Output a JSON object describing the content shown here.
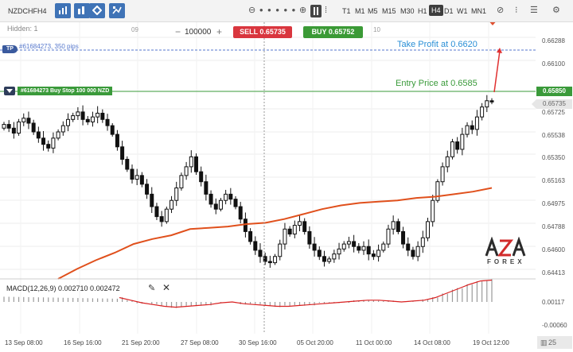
{
  "toolbar": {
    "symbol": "NZDCHF",
    "period": "H4",
    "timeframes": [
      "T1",
      "M1",
      "M5",
      "M15",
      "M30",
      "H1",
      "H4",
      "D1",
      "W1",
      "MN1"
    ],
    "active_timeframe": "H4",
    "icons": [
      "bar-chart-icon",
      "bar-chart-icon",
      "diamond-icon",
      "indicators-icon",
      "zoom-out-icon",
      "dots-icon",
      "zoom-in-icon",
      "candlestick-type-icon",
      "drawing-tools-icon",
      "crosshair-icon",
      "settings-icon"
    ]
  },
  "chart_header": {
    "hidden_label": "Hidden: 1",
    "date_marks": [
      "09",
      "10"
    ],
    "quantity_minus": "−",
    "quantity": "100000",
    "quantity_plus": "+",
    "sell_label": "SELL 0.65735",
    "buy_label": "BUY 0.65752"
  },
  "overlays": {
    "tp_tag": "TP",
    "tp_order_label": "#61684273, 350 pips",
    "take_profit_text": "Take Profit at 0.6620",
    "entry_text": "Entry Price at 0.6585",
    "order_label": "#61684273 Buy Stop 100 000 NZD"
  },
  "price_axis": {
    "ticks": [
      "0.66288",
      "0.66100",
      "0.65725",
      "0.65538",
      "0.65350",
      "0.65163",
      "0.64975",
      "0.64788",
      "0.64600",
      "0.64413"
    ],
    "entry_badge": "0.65850",
    "current_badge": "0.65735"
  },
  "macd": {
    "label": "MACD(12,26,9) 0.002710 0.002472",
    "ticks": [
      "0.00117",
      "-0.00060"
    ]
  },
  "time_axis": {
    "ticks": [
      "13 Sep 08:00",
      "16 Sep 16:00",
      "21 Sep 20:00",
      "27 Sep 08:00",
      "30 Sep 16:00",
      "05 Oct 20:00",
      "11 Oct 00:00",
      "14 Oct 08:00",
      "19 Oct 12:00"
    ],
    "zoom": "25"
  },
  "logo": {
    "text": "FOREX",
    "mark": "AZA"
  },
  "colors": {
    "sell": "#d9363e",
    "buy": "#3b9a36",
    "take_profit": "#2a8fd6",
    "entry": "#3a9a3a",
    "ma": "#e0501c",
    "macd_signal": "#d92020",
    "candle": "#111111"
  },
  "chart_data": {
    "type": "candlestick",
    "symbol": "NZDCHF",
    "timeframe": "H4",
    "ylim": [
      0.6432,
      0.6638
    ],
    "take_profit": 0.662,
    "entry_price": 0.6585,
    "current_price": 0.65735,
    "closes_approx": [
      0.6556,
      0.6553,
      0.6549,
      0.6558,
      0.6561,
      0.6557,
      0.655,
      0.6545,
      0.654,
      0.6537,
      0.6545,
      0.655,
      0.6555,
      0.656,
      0.6563,
      0.6566,
      0.656,
      0.6558,
      0.6562,
      0.6565,
      0.656,
      0.6555,
      0.6548,
      0.6538,
      0.6528,
      0.652,
      0.6512,
      0.6515,
      0.6508,
      0.65,
      0.649,
      0.6482,
      0.6478,
      0.6488,
      0.6495,
      0.6505,
      0.6515,
      0.6522,
      0.653,
      0.6518,
      0.651,
      0.65,
      0.6492,
      0.6488,
      0.6495,
      0.65,
      0.6496,
      0.649,
      0.648,
      0.647,
      0.6462,
      0.6455,
      0.645,
      0.6446,
      0.6445,
      0.645,
      0.646,
      0.6472,
      0.6468,
      0.6475,
      0.6478,
      0.647,
      0.646,
      0.6455,
      0.645,
      0.6446,
      0.6448,
      0.6452,
      0.6456,
      0.646,
      0.6462,
      0.6458,
      0.6455,
      0.6458,
      0.6452,
      0.645,
      0.6455,
      0.646,
      0.6472,
      0.6478,
      0.647,
      0.646,
      0.6455,
      0.645,
      0.6458,
      0.6465,
      0.6478,
      0.6495,
      0.651,
      0.6522,
      0.653,
      0.6542,
      0.6536,
      0.6548,
      0.6555,
      0.6552,
      0.6562,
      0.657,
      0.6575,
      0.6574
    ],
    "ma_approx": [
      0.6432,
      0.644,
      0.6447,
      0.6453,
      0.646,
      0.6464,
      0.6467,
      0.6472,
      0.6473,
      0.6474,
      0.6476,
      0.6477,
      0.648,
      0.6484,
      0.6488,
      0.6491,
      0.6493,
      0.6494,
      0.6495,
      0.6497,
      0.6498,
      0.65,
      0.6502,
      0.6505
    ],
    "macd_signal_approx": [
      0.0005,
      0.0002,
      -0.0001,
      -0.0003,
      -0.0005,
      -0.0006,
      -0.0005,
      -0.0004,
      -0.0003,
      -0.0001,
      0.0,
      -0.0002,
      -0.0003,
      -0.0004,
      -0.0005,
      -0.0005,
      -0.0004,
      -0.0003,
      -0.0002,
      -0.0001,
      0.0,
      0.0001,
      0.0002,
      0.0002,
      0.0001,
      0.0,
      0.0001,
      0.0002,
      0.0005,
      0.001,
      0.0015,
      0.002,
      0.0024,
      0.0025
    ]
  }
}
